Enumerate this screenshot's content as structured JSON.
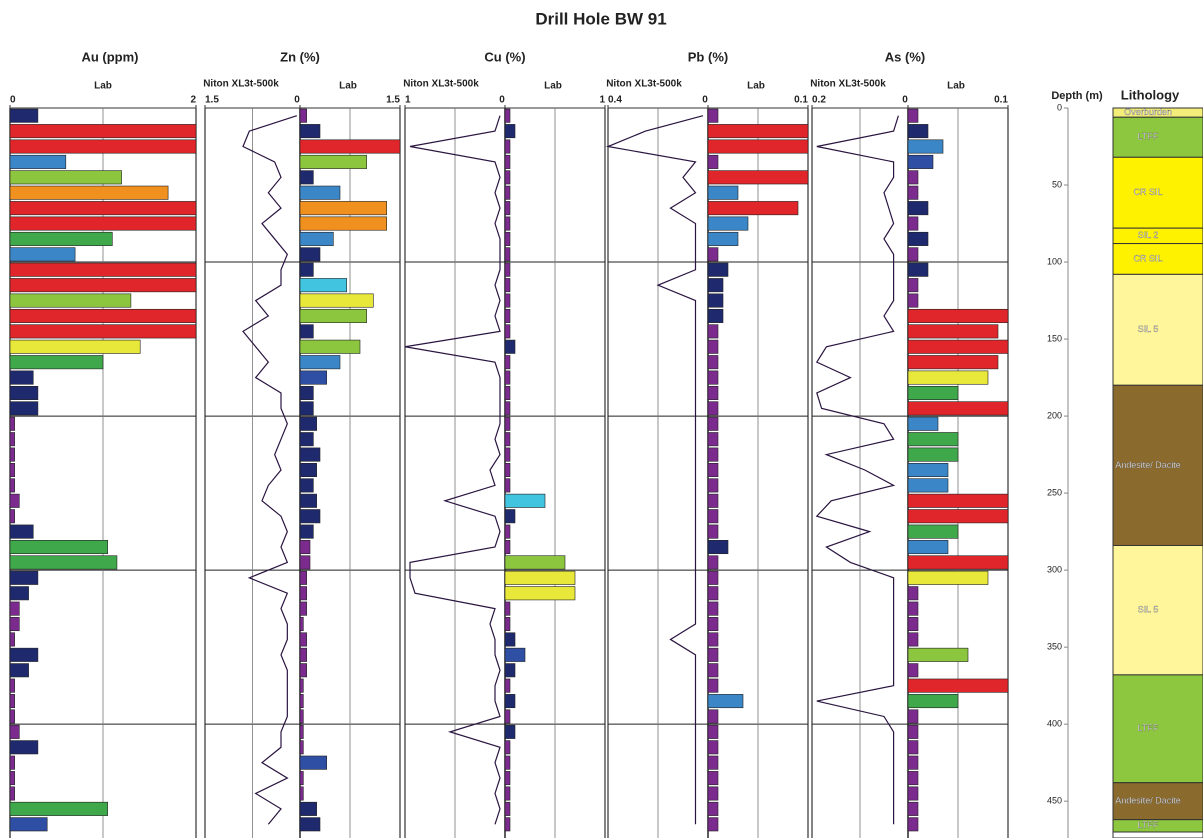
{
  "chart_data": {
    "type": "well-log",
    "title": "Drill Hole BW 91",
    "depth_label": "Depth (m)",
    "lithology_label": "Lithology",
    "ylim": [
      0,
      470
    ],
    "yticks": [
      0,
      50,
      100,
      150,
      200,
      250,
      300,
      350,
      400,
      450
    ],
    "palette": [
      "#7b2a8e",
      "#1f2a6e",
      "#2e4fa3",
      "#3b86c6",
      "#41c4e0",
      "#3ea84a",
      "#8cc63f",
      "#e8e83a",
      "#f0901e",
      "#e0262a"
    ],
    "niton_color": "#2a1540",
    "depths": [
      0,
      10,
      20,
      30,
      40,
      50,
      60,
      70,
      80,
      90,
      100,
      110,
      120,
      130,
      140,
      150,
      160,
      170,
      180,
      190,
      200,
      210,
      220,
      230,
      240,
      250,
      260,
      270,
      280,
      290,
      300,
      310,
      320,
      330,
      340,
      350,
      360,
      370,
      380,
      390,
      400,
      410,
      420,
      430,
      440,
      450,
      460
    ],
    "panels": [
      {
        "title": "Au (ppm)",
        "lab": {
          "label": "Lab",
          "xlim": [
            0,
            2
          ],
          "xticks": [
            0,
            2
          ],
          "values": [
            0.3,
            2,
            2,
            0.6,
            1.2,
            1.7,
            2,
            2,
            1.1,
            0.7,
            2,
            2,
            1.3,
            2,
            2,
            1.4,
            1.0,
            0.25,
            0.3,
            0.3,
            0.05,
            0.05,
            0.05,
            0.05,
            0.05,
            0.1,
            0.05,
            0.25,
            1.05,
            1.15,
            0.3,
            0.2,
            0.1,
            0.1,
            0.05,
            0.3,
            0.2,
            0.05,
            0.05,
            0.05,
            0.1,
            0.3,
            0.05,
            0.05,
            0.05,
            1.05,
            0.4
          ]
        }
      },
      {
        "title": "Zn (%)",
        "niton": {
          "label": "Niton XL3t-500k",
          "xlim": [
            1.5,
            0
          ],
          "xticks": [
            1.5
          ],
          "values": [
            0.05,
            0.8,
            0.9,
            0.4,
            0.3,
            0.5,
            0.3,
            0.6,
            0.4,
            0.2,
            0.3,
            0.3,
            0.7,
            0.5,
            0.9,
            0.7,
            0.5,
            0.7,
            0.3,
            0.3,
            0.2,
            0.3,
            0.4,
            0.3,
            0.5,
            0.6,
            0.3,
            0.2,
            0.3,
            0.2,
            0.8,
            0.2,
            0.3,
            0.2,
            0.2,
            0.3,
            0.2,
            0.2,
            0.2,
            0.2,
            0.3,
            0.3,
            0.6,
            0.2,
            0.7,
            0.3,
            0.5
          ]
        },
        "lab": {
          "label": "Lab",
          "xlim": [
            0,
            1.5
          ],
          "xticks": [
            0,
            1.5
          ],
          "values": [
            0.1,
            0.3,
            1.5,
            1.0,
            0.2,
            0.6,
            1.3,
            1.3,
            0.5,
            0.3,
            0.2,
            0.7,
            1.1,
            1.0,
            0.2,
            0.9,
            0.6,
            0.4,
            0.2,
            0.2,
            0.25,
            0.2,
            0.3,
            0.25,
            0.2,
            0.25,
            0.3,
            0.2,
            0.15,
            0.15,
            0.1,
            0.1,
            0.1,
            0.05,
            0.1,
            0.1,
            0.1,
            0.05,
            0.05,
            0.05,
            0.05,
            0.05,
            0.4,
            0.05,
            0.05,
            0.25,
            0.3
          ]
        }
      },
      {
        "title": "Cu (%)",
        "niton": {
          "label": "Niton XL3t-500k",
          "xlim": [
            1,
            0
          ],
          "xticks": [
            1
          ],
          "values": [
            0.05,
            0.1,
            0.95,
            0.1,
            0.05,
            0.1,
            0.05,
            0.1,
            0.05,
            0.05,
            0.05,
            0.1,
            0.05,
            0.1,
            0.05,
            1.0,
            0.1,
            0.05,
            0.05,
            0.05,
            0.05,
            0.1,
            0.05,
            0.15,
            0.1,
            0.6,
            0.1,
            0.05,
            0.1,
            0.95,
            0.95,
            0.9,
            0.1,
            0.15,
            0.1,
            0.1,
            0.05,
            0.1,
            0.1,
            0.05,
            0.55,
            0.05,
            0.1,
            0.05,
            0.1,
            0.05,
            0.1
          ]
        },
        "lab": {
          "label": "Lab",
          "xlim": [
            0,
            1
          ],
          "xticks": [
            0,
            1
          ],
          "values": [
            0.05,
            0.1,
            0.05,
            0.05,
            0.05,
            0.05,
            0.05,
            0.05,
            0.05,
            0.05,
            0.05,
            0.05,
            0.05,
            0.05,
            0.05,
            0.1,
            0.05,
            0.05,
            0.05,
            0.05,
            0.05,
            0.05,
            0.05,
            0.05,
            0.05,
            0.4,
            0.1,
            0.05,
            0.05,
            0.6,
            0.7,
            0.7,
            0.05,
            0.05,
            0.1,
            0.2,
            0.1,
            0.05,
            0.1,
            0.05,
            0.1,
            0.05,
            0.05,
            0.05,
            0.05,
            0.05,
            0.05
          ]
        }
      },
      {
        "title": "Pb (%)",
        "niton": {
          "label": "Niton XL3t-500k",
          "xlim": [
            0.4,
            0
          ],
          "xticks": [
            0.4
          ],
          "values": [
            0.02,
            0.25,
            0.4,
            0.05,
            0.1,
            0.05,
            0.15,
            0.05,
            0.05,
            0.05,
            0.05,
            0.2,
            0.05,
            0.05,
            0.05,
            0.05,
            0.05,
            0.05,
            0.05,
            0.05,
            0.05,
            0.05,
            0.05,
            0.05,
            0.05,
            0.05,
            0.05,
            0.05,
            0.05,
            0.05,
            0.05,
            0.05,
            0.05,
            0.05,
            0.15,
            0.05,
            0.05,
            0.05,
            0.05,
            0.05,
            0.05,
            0.05,
            0.05,
            0.05,
            0.05,
            0.05,
            0.05
          ]
        },
        "lab": {
          "label": "Lab",
          "xlim": [
            0,
            0.1
          ],
          "xticks": [
            0,
            0.1
          ],
          "values": [
            0.01,
            0.1,
            0.1,
            0.01,
            0.1,
            0.03,
            0.09,
            0.04,
            0.03,
            0.01,
            0.02,
            0.015,
            0.015,
            0.015,
            0.01,
            0.01,
            0.01,
            0.01,
            0.01,
            0.01,
            0.01,
            0.01,
            0.01,
            0.01,
            0.01,
            0.01,
            0.01,
            0.01,
            0.02,
            0.01,
            0.01,
            0.01,
            0.01,
            0.01,
            0.01,
            0.01,
            0.01,
            0.01,
            0.035,
            0.01,
            0.01,
            0.01,
            0.01,
            0.01,
            0.01,
            0.01,
            0.01
          ]
        }
      },
      {
        "title": "As  (%)",
        "niton": {
          "label": "Niton XL3t-500k",
          "xlim": [
            0.2,
            0
          ],
          "xticks": [
            0.2
          ],
          "values": [
            0.02,
            0.03,
            0.19,
            0.03,
            0.03,
            0.05,
            0.04,
            0.03,
            0.05,
            0.03,
            0.03,
            0.03,
            0.03,
            0.05,
            0.03,
            0.17,
            0.19,
            0.12,
            0.19,
            0.18,
            0.05,
            0.03,
            0.17,
            0.09,
            0.03,
            0.16,
            0.19,
            0.08,
            0.17,
            0.12,
            0.03,
            0.03,
            0.03,
            0.03,
            0.03,
            0.03,
            0.03,
            0.03,
            0.19,
            0.05,
            0.03,
            0.03,
            0.03,
            0.03,
            0.03,
            0.03,
            0.03
          ]
        },
        "lab": {
          "label": "Lab",
          "xlim": [
            0,
            0.1
          ],
          "xticks": [
            0,
            0.1
          ],
          "values": [
            0.01,
            0.02,
            0.035,
            0.025,
            0.01,
            0.01,
            0.02,
            0.01,
            0.02,
            0.01,
            0.02,
            0.01,
            0.01,
            0.1,
            0.09,
            0.1,
            0.09,
            0.08,
            0.05,
            0.1,
            0.03,
            0.05,
            0.05,
            0.04,
            0.04,
            0.1,
            0.1,
            0.05,
            0.04,
            0.1,
            0.08,
            0.01,
            0.01,
            0.01,
            0.01,
            0.06,
            0.01,
            0.1,
            0.05,
            0.01,
            0.01,
            0.01,
            0.01,
            0.01,
            0.01,
            0.01,
            0.01
          ]
        }
      }
    ],
    "lithology": [
      {
        "label": "Overburden",
        "top": 0,
        "bottom": 6,
        "color": "#f3ee7a"
      },
      {
        "label": "LTFF",
        "top": 6,
        "bottom": 32,
        "color": "#8dc63f"
      },
      {
        "label": "CR SIL",
        "top": 32,
        "bottom": 78,
        "color": "#fff200"
      },
      {
        "label": "SIL 2",
        "top": 78,
        "bottom": 88,
        "color": "#fff200"
      },
      {
        "label": "CR SIL",
        "top": 88,
        "bottom": 108,
        "color": "#fff200"
      },
      {
        "label": "SIL 5",
        "top": 108,
        "bottom": 180,
        "color": "#fff59a"
      },
      {
        "label": "Andesite/ Dacite",
        "top": 180,
        "bottom": 284,
        "color": "#8b6a2e"
      },
      {
        "label": "SIL 5",
        "top": 284,
        "bottom": 368,
        "color": "#fff59a"
      },
      {
        "label": "LTFF",
        "top": 368,
        "bottom": 438,
        "color": "#8dc63f"
      },
      {
        "label": "Andesite/ Dacite",
        "top": 438,
        "bottom": 462,
        "color": "#8b6a2e"
      },
      {
        "label": "LTFF",
        "top": 462,
        "bottom": 470,
        "color": "#8dc63f"
      }
    ]
  }
}
